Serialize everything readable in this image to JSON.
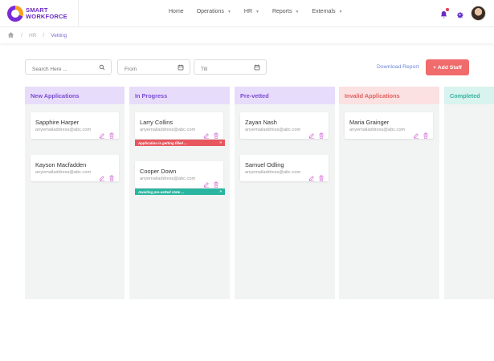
{
  "brand": {
    "line1": "SMART",
    "line2": "WORKFORCE"
  },
  "nav": [
    {
      "label": "Home",
      "dropdown": false
    },
    {
      "label": "Operations",
      "dropdown": true
    },
    {
      "label": "HR",
      "dropdown": true
    },
    {
      "label": "Reports",
      "dropdown": true
    },
    {
      "label": "Externals",
      "dropdown": true
    }
  ],
  "breadcrumb": {
    "items": [
      "HR",
      "Vetting"
    ],
    "separator": "/"
  },
  "toolbar": {
    "search_placeholder": "Search Here ...",
    "from_placeholder": "From",
    "till_placeholder": "Till",
    "download_label": "Download Report",
    "add_staff_label": "+  Add Staff"
  },
  "columns": [
    {
      "title": "New Applications",
      "head_bg": "#e8dcfb",
      "head_color": "#7b4bd3",
      "cards": [
        {
          "name": "Sapphire Harper",
          "email": "anyemailaddress@abc.com"
        },
        {
          "name": "Kayson Macfadden",
          "email": "anyemailaddress@abc.com"
        }
      ]
    },
    {
      "title": "In Progress",
      "head_bg": "#e8dcfb",
      "head_color": "#7b4bd3",
      "cards": [
        {
          "name": "Larry Collins",
          "email": "anyemailaddress@abc.com",
          "status": {
            "text": "Application is getting filled ...",
            "color": "#e8565e"
          }
        },
        {
          "name": "Cooper Down",
          "email": "anyemailaddress@abc.com",
          "status": {
            "text": "Awaiting pre-vetted state ...",
            "color": "#2ab5a0"
          }
        }
      ]
    },
    {
      "title": "Pre-vetted",
      "head_bg": "#e8dcfb",
      "head_color": "#7b4bd3",
      "cards": [
        {
          "name": "Zayan Nash",
          "email": "anyemailaddress@abc.com"
        },
        {
          "name": "Samuel Odling",
          "email": "anyemailaddress@abc.com"
        }
      ]
    },
    {
      "title": "Invalid Applications",
      "head_bg": "#fbe1e1",
      "head_color": "#e0605f",
      "cards": [
        {
          "name": "Maria Grainger",
          "email": "anyemailaddress@abc.com"
        }
      ]
    },
    {
      "title": "Completed",
      "head_bg": "#d9f3ee",
      "head_color": "#35b3a0",
      "cards": []
    }
  ],
  "icons": {
    "home": "home-icon",
    "bell": "bell-icon",
    "gear": "gear-icon",
    "search": "search-icon",
    "calendar": "calendar-icon",
    "edit": "edit-icon",
    "delete": "trash-icon",
    "more": "double-chevron-right-icon"
  },
  "colors": {
    "accent": "#7b4bd3",
    "primary_button": "#f06b6b",
    "link": "#6f86d6",
    "icon_pink": "#d46ad8"
  }
}
